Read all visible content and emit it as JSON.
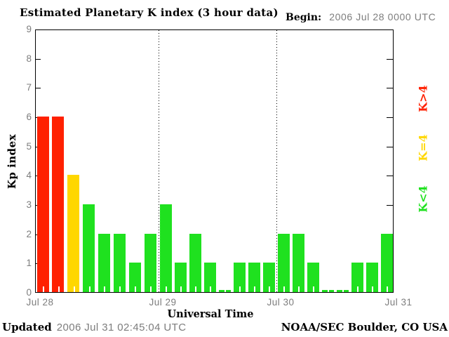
{
  "title": "Estimated Planetary K index (3 hour data)",
  "begin": {
    "label": "Begin:",
    "value": "2006 Jul 28 0000 UTC"
  },
  "legend": {
    "items": [
      {
        "label": "K>4",
        "color": "#ff2000"
      },
      {
        "label": "K=4",
        "color": "#ffd700"
      },
      {
        "label": "K<4",
        "color": "#1fe11f"
      }
    ]
  },
  "footer": {
    "updated_label": "Updated",
    "updated_value": "2006 Jul 31 02:45:04 UTC",
    "credit": "NOAA/SEC Boulder, CO USA"
  },
  "chart_data": {
    "type": "bar",
    "title": "Estimated Planetary K index (3 hour data)",
    "xlabel": "Universal Time",
    "ylabel": "Kp index",
    "ylim": [
      0,
      9
    ],
    "yticks": [
      0,
      1,
      2,
      3,
      4,
      5,
      6,
      7,
      8,
      9
    ],
    "xticklabels": [
      "Jul 28",
      "Jul 29",
      "Jul 30",
      "Jul 31"
    ],
    "interval_hours": 3,
    "bars_per_day": 8,
    "values": [
      6,
      6,
      4,
      3,
      2,
      2,
      1,
      2,
      3,
      1,
      2,
      1,
      0,
      1,
      1,
      1,
      2,
      2,
      1,
      0,
      0,
      1,
      1,
      2
    ],
    "day_separator_labels": [
      "Jul 29",
      "Jul 30"
    ],
    "color_rule": {
      "gt4": "#ff2000",
      "eq4": "#ffd700",
      "lt4": "#1fe11f"
    },
    "axis_text_color": "#7d7d7d",
    "legend_position": "right"
  }
}
